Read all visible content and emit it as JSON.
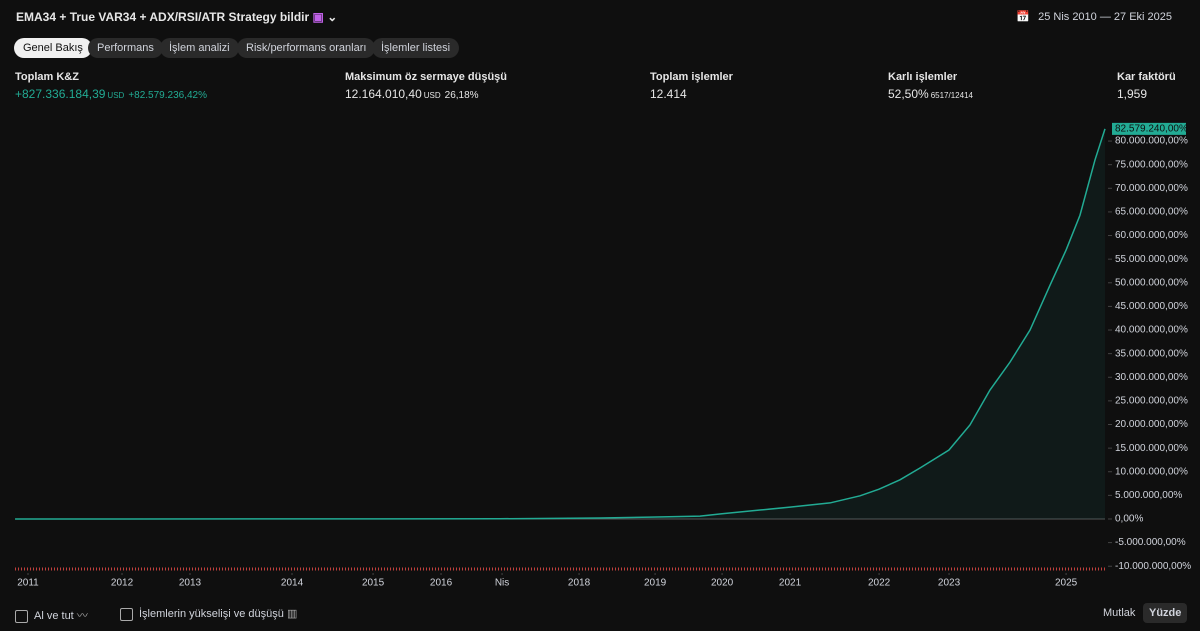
{
  "header": {
    "title": "EMA34 + True VAR34 + ADX/RSI/ATR Strategy bildir",
    "date_range": "25 Nis 2010 — 27 Eki 2025"
  },
  "tabs": [
    "Genel Bakış",
    "Performans",
    "İşlem analizi",
    "Risk/performans oranları",
    "İşlemler listesi"
  ],
  "stats": [
    {
      "label": "Toplam K&Z",
      "value": "+827.336.184,39",
      "unit": "USD",
      "sub": "+82.579.236,42%"
    },
    {
      "label": "Maksimum öz sermaye düşüşü",
      "value": "12.164.010,40",
      "unit": "USD",
      "sub": "26,18%"
    },
    {
      "label": "Toplam işlemler",
      "value": "12.414"
    },
    {
      "label": "Karlı işlemler",
      "value": "52,50%",
      "sub": "6517/12414"
    },
    {
      "label": "Kar faktörü",
      "value": "1,959"
    }
  ],
  "chart_data": {
    "type": "line",
    "color": "#22ab94",
    "x": [
      1,
      3246,
      5524,
      6663,
      7232,
      7802,
      8052,
      8485,
      8827,
      9282,
      9624,
      9840,
      10079,
      10307,
      10637,
      10876,
      11104,
      11332,
      11560,
      11788,
      11970,
      12129,
      12300,
      12414
    ],
    "values": [
      0,
      20000,
      50000,
      200000,
      400000,
      600000,
      1100000,
      1900000,
      2500000,
      3400000,
      4900000,
      6300000,
      8300000,
      10800000,
      14600000,
      19900000,
      27300000,
      33200000,
      40000000,
      49500000,
      56900000,
      64300000,
      76000000,
      82579240
    ],
    "end_label": "82.579.240,00%",
    "xlim": [
      0,
      12414
    ],
    "xticks": [
      {
        "value": 148,
        "label": "2011"
      },
      {
        "value": 1219,
        "label": "2012"
      },
      {
        "value": 1993,
        "label": "2013"
      },
      {
        "value": 3155,
        "label": "2014"
      },
      {
        "value": 4078,
        "label": "2015"
      },
      {
        "value": 4852,
        "label": "2016"
      },
      {
        "value": 5547,
        "label": "Nis"
      },
      {
        "value": 6424,
        "label": "2018"
      },
      {
        "value": 7290,
        "label": "2019"
      },
      {
        "value": 8053,
        "label": "2020"
      },
      {
        "value": 8827,
        "label": "2021"
      },
      {
        "value": 9841,
        "label": "2022"
      },
      {
        "value": 10638,
        "label": "2023"
      },
      {
        "value": 11971,
        "label": "2025"
      }
    ],
    "ylim": [
      -10800000,
      83400000
    ],
    "yticks": [
      {
        "value": -10000000,
        "label": "-10.000.000,00%"
      },
      {
        "value": -5000000,
        "label": "-5.000.000,00%"
      },
      {
        "value": 0,
        "label": "0,00%"
      },
      {
        "value": 5000000,
        "label": "5.000.000,00%"
      },
      {
        "value": 10000000,
        "label": "10.000.000,00%"
      },
      {
        "value": 15000000,
        "label": "15.000.000,00%"
      },
      {
        "value": 20000000,
        "label": "20.000.000,00%"
      },
      {
        "value": 25000000,
        "label": "25.000.000,00%"
      },
      {
        "value": 30000000,
        "label": "30.000.000,00%"
      },
      {
        "value": 35000000,
        "label": "35.000.000,00%"
      },
      {
        "value": 40000000,
        "label": "40.000.000,00%"
      },
      {
        "value": 45000000,
        "label": "45.000.000,00%"
      },
      {
        "value": 50000000,
        "label": "50.000.000,00%"
      },
      {
        "value": 55000000,
        "label": "55.000.000,00%"
      },
      {
        "value": 60000000,
        "label": "60.000.000,00%"
      },
      {
        "value": 65000000,
        "label": "65.000.000,00%"
      },
      {
        "value": 70000000,
        "label": "70.000.000,00%"
      },
      {
        "value": 75000000,
        "label": "75.000.000,00%"
      },
      {
        "value": 80000000,
        "label": "80.000.000,00%"
      }
    ]
  },
  "footer": {
    "buy_hold": "Al ve tut",
    "runup": "İşlemlerin yükselişi ve düşüşü",
    "absolute": "Mutlak",
    "percent": "Yüzde"
  }
}
